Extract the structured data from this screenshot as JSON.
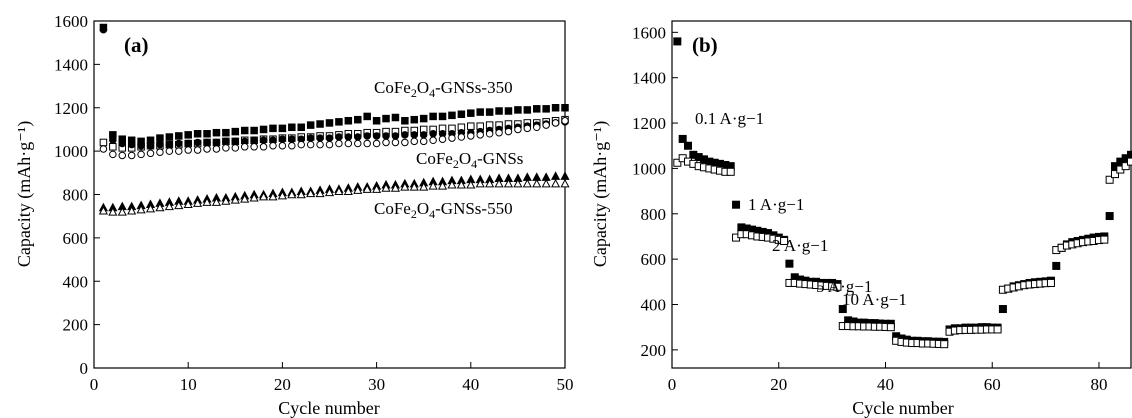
{
  "chart_data": [
    {
      "type": "scatter",
      "panel_label": "(a)",
      "xlabel": "Cycle number",
      "ylabel": "Capacity (mAh·g⁻¹)",
      "xlim": [
        0,
        50
      ],
      "ylim": [
        0,
        1600
      ],
      "xticks": [
        0,
        10,
        20,
        30,
        40,
        50
      ],
      "yticks": [
        0,
        200,
        400,
        600,
        800,
        1000,
        1200,
        1400,
        1600
      ],
      "grid": false,
      "legend": "none",
      "annotations": [
        {
          "base": "CoFe",
          "sub1": "2",
          "mid": "O",
          "sub2": "4",
          "tail": "-GNSs-350"
        },
        {
          "base": "CoFe",
          "sub1": "2",
          "mid": "O",
          "sub2": "4",
          "tail": "-GNSs"
        },
        {
          "base": "CoFe",
          "sub1": "2",
          "mid": "O",
          "sub2": "4",
          "tail": "-GNSs-550"
        }
      ],
      "series": [
        {
          "marker": "square-filled",
          "x": [
            1,
            2,
            3,
            4,
            5,
            6,
            7,
            8,
            9,
            10,
            11,
            12,
            13,
            14,
            15,
            16,
            17,
            18,
            19,
            20,
            21,
            22,
            23,
            24,
            25,
            26,
            27,
            28,
            29,
            30,
            31,
            32,
            33,
            34,
            35,
            36,
            37,
            38,
            39,
            40,
            41,
            42,
            43,
            44,
            45,
            46,
            47,
            48,
            49,
            50
          ],
          "y": [
            1570,
            1075,
            1055,
            1050,
            1045,
            1050,
            1060,
            1065,
            1070,
            1075,
            1080,
            1080,
            1085,
            1085,
            1090,
            1095,
            1095,
            1100,
            1105,
            1105,
            1110,
            1110,
            1120,
            1125,
            1130,
            1135,
            1140,
            1145,
            1160,
            1140,
            1150,
            1155,
            1140,
            1145,
            1150,
            1160,
            1160,
            1165,
            1170,
            1175,
            1180,
            1180,
            1185,
            1185,
            1190,
            1190,
            1195,
            1195,
            1200,
            1200
          ]
        },
        {
          "marker": "square-open",
          "x": [
            1,
            2,
            3,
            4,
            5,
            6,
            7,
            8,
            9,
            10,
            11,
            12,
            13,
            14,
            15,
            16,
            17,
            18,
            19,
            20,
            21,
            22,
            23,
            24,
            25,
            26,
            27,
            28,
            29,
            30,
            31,
            32,
            33,
            34,
            35,
            36,
            37,
            38,
            39,
            40,
            41,
            42,
            43,
            44,
            45,
            46,
            47,
            48,
            49,
            50
          ],
          "y": [
            1040,
            1020,
            1015,
            1015,
            1020,
            1025,
            1025,
            1030,
            1030,
            1035,
            1035,
            1040,
            1040,
            1045,
            1045,
            1050,
            1050,
            1055,
            1055,
            1060,
            1060,
            1065,
            1065,
            1070,
            1070,
            1075,
            1080,
            1080,
            1085,
            1085,
            1090,
            1090,
            1095,
            1095,
            1100,
            1100,
            1105,
            1105,
            1110,
            1115,
            1115,
            1120,
            1120,
            1125,
            1125,
            1130,
            1130,
            1135,
            1140,
            1145
          ]
        },
        {
          "marker": "circle-filled",
          "x": [
            1,
            2,
            3,
            4,
            5,
            6,
            7,
            8,
            9,
            10,
            11,
            12,
            13,
            14,
            15,
            16,
            17,
            18,
            19,
            20,
            21,
            22,
            23,
            24,
            25,
            26,
            27,
            28,
            29,
            30,
            31,
            32,
            33,
            34,
            35,
            36,
            37,
            38,
            39,
            40,
            41,
            42,
            43,
            44,
            45,
            46,
            47,
            48,
            49,
            50
          ],
          "y": [
            1560,
            1050,
            1035,
            1030,
            1025,
            1025,
            1030,
            1030,
            1035,
            1035,
            1040,
            1040,
            1040,
            1045,
            1045,
            1045,
            1050,
            1050,
            1050,
            1055,
            1055,
            1055,
            1060,
            1060,
            1060,
            1065,
            1065,
            1065,
            1070,
            1070,
            1070,
            1070,
            1075,
            1075,
            1075,
            1080,
            1080,
            1080,
            1085,
            1085,
            1090,
            1095,
            1100,
            1105,
            1110,
            1115,
            1120,
            1125,
            1130,
            1135
          ]
        },
        {
          "marker": "circle-open",
          "x": [
            1,
            2,
            3,
            4,
            5,
            6,
            7,
            8,
            9,
            10,
            11,
            12,
            13,
            14,
            15,
            16,
            17,
            18,
            19,
            20,
            21,
            22,
            23,
            24,
            25,
            26,
            27,
            28,
            29,
            30,
            31,
            32,
            33,
            34,
            35,
            36,
            37,
            38,
            39,
            40,
            41,
            42,
            43,
            44,
            45,
            46,
            47,
            48,
            49,
            50
          ],
          "y": [
            1010,
            985,
            980,
            980,
            985,
            990,
            995,
            1000,
            1000,
            1005,
            1005,
            1010,
            1010,
            1015,
            1015,
            1020,
            1020,
            1020,
            1025,
            1025,
            1025,
            1030,
            1030,
            1030,
            1030,
            1035,
            1035,
            1035,
            1035,
            1035,
            1040,
            1040,
            1040,
            1045,
            1045,
            1050,
            1055,
            1060,
            1065,
            1070,
            1075,
            1080,
            1085,
            1090,
            1100,
            1105,
            1110,
            1120,
            1130,
            1140
          ]
        },
        {
          "marker": "triangle-filled",
          "x": [
            1,
            2,
            3,
            4,
            5,
            6,
            7,
            8,
            9,
            10,
            11,
            12,
            13,
            14,
            15,
            16,
            17,
            18,
            19,
            20,
            21,
            22,
            23,
            24,
            25,
            26,
            27,
            28,
            29,
            30,
            31,
            32,
            33,
            34,
            35,
            36,
            37,
            38,
            39,
            40,
            41,
            42,
            43,
            44,
            45,
            46,
            47,
            48,
            49,
            50
          ],
          "y": [
            740,
            740,
            745,
            745,
            750,
            755,
            760,
            765,
            770,
            770,
            775,
            780,
            785,
            785,
            790,
            795,
            800,
            800,
            805,
            810,
            810,
            815,
            815,
            820,
            825,
            825,
            830,
            835,
            835,
            840,
            845,
            845,
            850,
            850,
            855,
            860,
            860,
            865,
            865,
            870,
            870,
            870,
            875,
            875,
            875,
            880,
            880,
            880,
            885,
            885
          ]
        },
        {
          "marker": "triangle-open",
          "x": [
            1,
            2,
            3,
            4,
            5,
            6,
            7,
            8,
            9,
            10,
            11,
            12,
            13,
            14,
            15,
            16,
            17,
            18,
            19,
            20,
            21,
            22,
            23,
            24,
            25,
            26,
            27,
            28,
            29,
            30,
            31,
            32,
            33,
            34,
            35,
            36,
            37,
            38,
            39,
            40,
            41,
            42,
            43,
            44,
            45,
            46,
            47,
            48,
            49,
            50
          ],
          "y": [
            725,
            720,
            720,
            725,
            730,
            735,
            740,
            745,
            750,
            755,
            760,
            765,
            765,
            770,
            775,
            780,
            785,
            790,
            790,
            795,
            800,
            800,
            805,
            805,
            810,
            815,
            815,
            820,
            825,
            825,
            830,
            830,
            835,
            835,
            835,
            840,
            840,
            845,
            845,
            845,
            850,
            850,
            850,
            850,
            850,
            850,
            850,
            850,
            850,
            850
          ]
        }
      ]
    },
    {
      "type": "scatter",
      "panel_label": "(b)",
      "xlabel": "Cycle number",
      "ylabel": "Capacity (mAh·g⁻¹)",
      "xlim": [
        0,
        86
      ],
      "ylim": [
        120,
        1650
      ],
      "xticks": [
        0,
        20,
        40,
        60,
        80
      ],
      "yticks": [
        200,
        400,
        600,
        800,
        1000,
        1200,
        1400,
        1600
      ],
      "grid": false,
      "legend": "none",
      "annotations": [
        "0.1 A·g−1",
        "1 A·g−1",
        "2 A·g−1",
        "5 A·g−1",
        "10 A·g−1"
      ],
      "series": [
        {
          "marker": "square-filled",
          "x": [
            1,
            2,
            3,
            4,
            5,
            6,
            7,
            8,
            9,
            10,
            11,
            12,
            13,
            14,
            15,
            16,
            17,
            18,
            19,
            20,
            21,
            22,
            23,
            24,
            25,
            26,
            27,
            28,
            29,
            30,
            31,
            32,
            33,
            34,
            35,
            36,
            37,
            38,
            39,
            40,
            41,
            42,
            43,
            44,
            45,
            46,
            47,
            48,
            49,
            50,
            51,
            52,
            53,
            54,
            55,
            56,
            57,
            58,
            59,
            60,
            61,
            62,
            63,
            64,
            65,
            66,
            67,
            68,
            69,
            70,
            71,
            72,
            73,
            74,
            75,
            76,
            77,
            78,
            79,
            80,
            81,
            82,
            83,
            84,
            85,
            86
          ],
          "y": [
            1560,
            1130,
            1100,
            1060,
            1050,
            1040,
            1030,
            1025,
            1020,
            1015,
            1010,
            840,
            740,
            735,
            730,
            725,
            720,
            715,
            705,
            695,
            685,
            580,
            520,
            510,
            505,
            500,
            500,
            495,
            495,
            495,
            490,
            380,
            330,
            325,
            320,
            320,
            318,
            318,
            316,
            315,
            315,
            260,
            250,
            245,
            240,
            240,
            238,
            238,
            236,
            236,
            235,
            290,
            295,
            295,
            298,
            298,
            298,
            300,
            300,
            298,
            298,
            380,
            470,
            480,
            485,
            490,
            495,
            498,
            500,
            502,
            505,
            570,
            650,
            665,
            675,
            680,
            685,
            690,
            695,
            698,
            700,
            790,
            1010,
            1030,
            1045,
            1060
          ]
        },
        {
          "marker": "square-open",
          "x": [
            1,
            2,
            3,
            4,
            5,
            6,
            7,
            8,
            9,
            10,
            11,
            12,
            13,
            14,
            15,
            16,
            17,
            18,
            19,
            20,
            21,
            22,
            23,
            24,
            25,
            26,
            27,
            28,
            29,
            30,
            31,
            32,
            33,
            34,
            35,
            36,
            37,
            38,
            39,
            40,
            41,
            42,
            43,
            44,
            45,
            46,
            47,
            48,
            49,
            50,
            51,
            52,
            53,
            54,
            55,
            56,
            57,
            58,
            59,
            60,
            61,
            62,
            63,
            64,
            65,
            66,
            67,
            68,
            69,
            70,
            71,
            72,
            73,
            74,
            75,
            76,
            77,
            78,
            79,
            80,
            81,
            82,
            83,
            84,
            85,
            86
          ],
          "y": [
            1025,
            1045,
            1030,
            1020,
            1010,
            1005,
            1000,
            995,
            990,
            985,
            985,
            695,
            710,
            710,
            705,
            700,
            698,
            695,
            690,
            685,
            680,
            495,
            495,
            492,
            490,
            488,
            486,
            484,
            482,
            480,
            478,
            305,
            305,
            304,
            304,
            303,
            303,
            302,
            302,
            301,
            300,
            240,
            235,
            232,
            230,
            230,
            228,
            228,
            227,
            226,
            225,
            280,
            285,
            287,
            288,
            288,
            289,
            289,
            290,
            290,
            290,
            465,
            470,
            475,
            480,
            485,
            488,
            490,
            492,
            494,
            495,
            640,
            650,
            660,
            665,
            670,
            675,
            678,
            680,
            684,
            686,
            950,
            975,
            995,
            1010,
            1030
          ]
        }
      ]
    }
  ]
}
